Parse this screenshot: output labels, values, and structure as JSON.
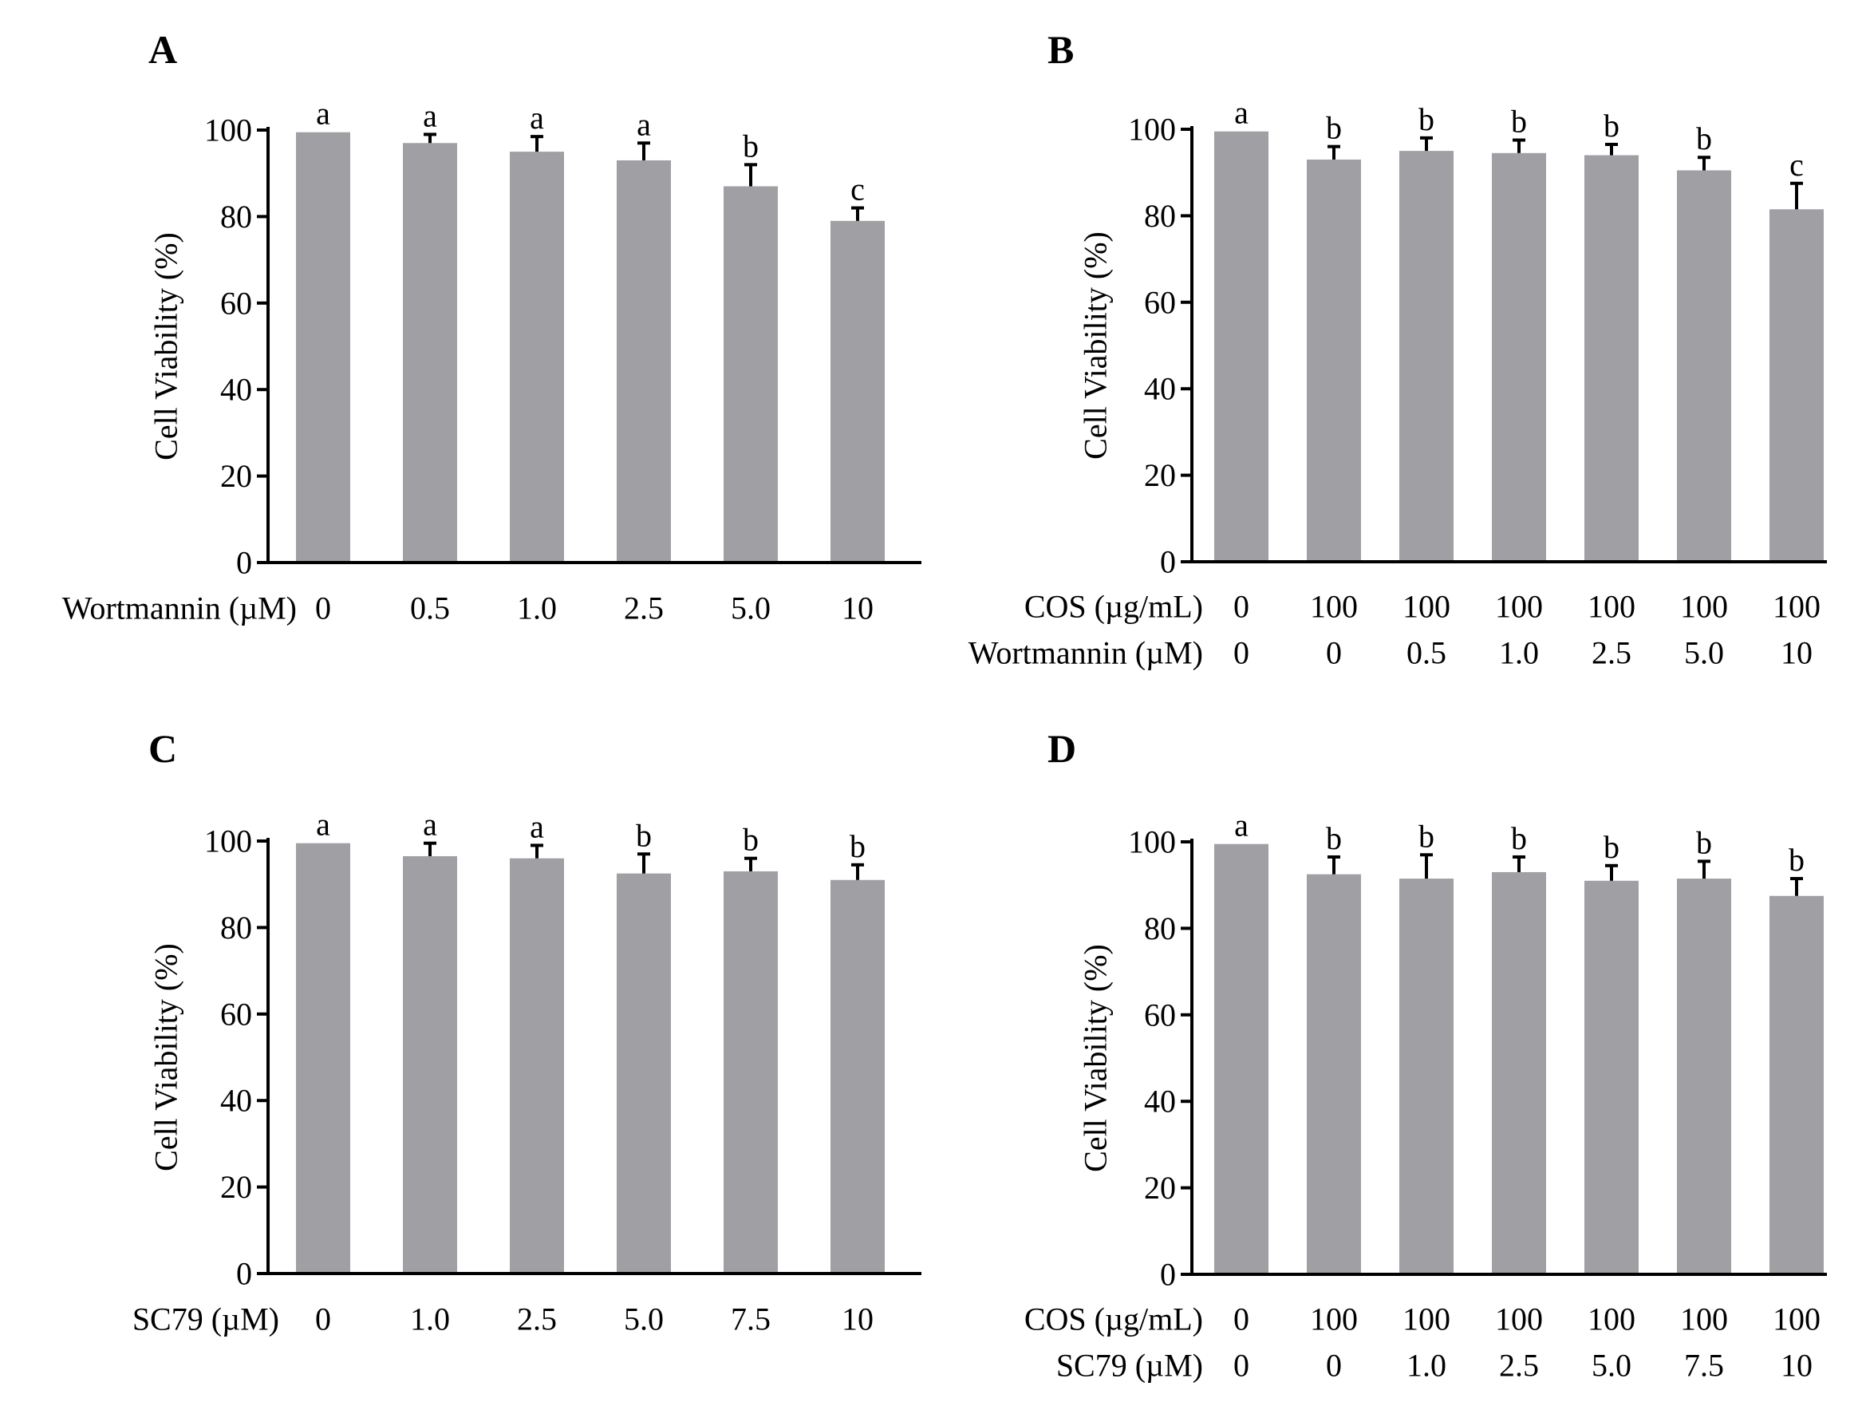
{
  "figure": {
    "bar_color": "#a0a0a4",
    "axis_color": "#000000"
  },
  "chart_data": [
    {
      "panel": "A",
      "type": "bar",
      "ylabel": "Cell Viability (%)",
      "ylim": [
        0,
        100
      ],
      "yticks": [
        "0",
        "20",
        "40",
        "60",
        "80",
        "100"
      ],
      "rows": [
        {
          "label": "Wortmannin (µM)",
          "values": [
            "0",
            "0.5",
            "1.0",
            "2.5",
            "5.0",
            "10"
          ]
        }
      ],
      "values": [
        99.5,
        97,
        95,
        93,
        87,
        79
      ],
      "errors": [
        0,
        2,
        3.5,
        4,
        5,
        3
      ],
      "letters": [
        "a",
        "a",
        "a",
        "a",
        "b",
        "c"
      ]
    },
    {
      "panel": "B",
      "type": "bar",
      "ylabel": "Cell Viability (%)",
      "ylim": [
        0,
        100
      ],
      "yticks": [
        "0",
        "20",
        "40",
        "60",
        "80",
        "100"
      ],
      "rows": [
        {
          "label": "COS (µg/mL)",
          "values": [
            "0",
            "100",
            "100",
            "100",
            "100",
            "100",
            "100"
          ]
        },
        {
          "label": "Wortmannin (µM)",
          "values": [
            "0",
            "0",
            "0.5",
            "1.0",
            "2.5",
            "5.0",
            "10"
          ]
        }
      ],
      "values": [
        99.5,
        93,
        95,
        94.5,
        94,
        90.5,
        81.5
      ],
      "errors": [
        0,
        3,
        3,
        3,
        2.5,
        3,
        6
      ],
      "letters": [
        "a",
        "b",
        "b",
        "b",
        "b",
        "b",
        "c"
      ]
    },
    {
      "panel": "C",
      "type": "bar",
      "ylabel": "Cell Viability (%)",
      "ylim": [
        0,
        100
      ],
      "yticks": [
        "0",
        "20",
        "40",
        "60",
        "80",
        "100"
      ],
      "rows": [
        {
          "label": "SC79 (µM)",
          "values": [
            "0",
            "1.0",
            "2.5",
            "5.0",
            "7.5",
            "10"
          ]
        }
      ],
      "values": [
        99.5,
        96.5,
        96,
        92.5,
        93,
        91
      ],
      "errors": [
        0,
        3,
        3,
        4.5,
        3,
        3.5
      ],
      "letters": [
        "a",
        "a",
        "a",
        "b",
        "b",
        "b"
      ]
    },
    {
      "panel": "D",
      "type": "bar",
      "ylabel": "Cell Viability (%)",
      "ylim": [
        0,
        100
      ],
      "yticks": [
        "0",
        "20",
        "40",
        "60",
        "80",
        "100"
      ],
      "rows": [
        {
          "label": "COS (µg/mL)",
          "values": [
            "0",
            "100",
            "100",
            "100",
            "100",
            "100",
            "100"
          ]
        },
        {
          "label": "SC79 (µM)",
          "values": [
            "0",
            "0",
            "1.0",
            "2.5",
            "5.0",
            "7.5",
            "10"
          ]
        }
      ],
      "values": [
        99.5,
        92.5,
        91.5,
        93,
        91,
        91.5,
        87.5
      ],
      "errors": [
        0,
        4,
        5.5,
        3.5,
        3.5,
        4,
        4
      ],
      "letters": [
        "a",
        "b",
        "b",
        "b",
        "b",
        "b",
        "b"
      ]
    }
  ]
}
